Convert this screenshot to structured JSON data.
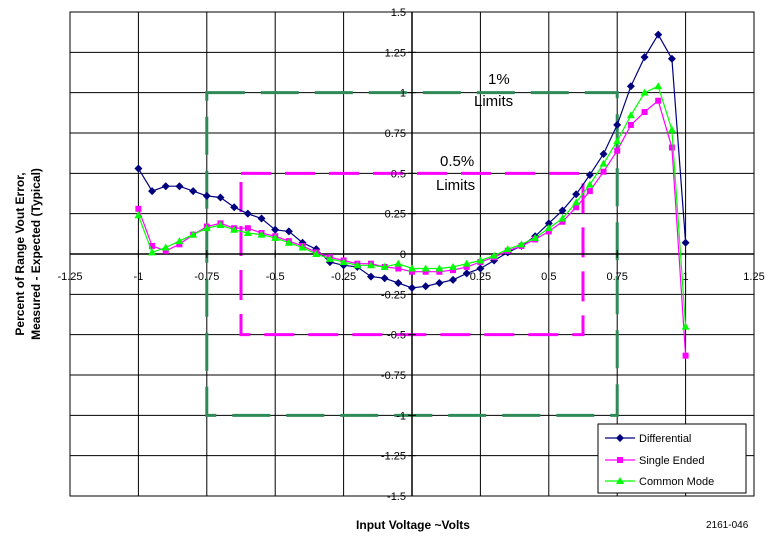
{
  "chart_data": {
    "type": "line",
    "xlabel": "Input Voltage ~Volts",
    "ylabel": [
      "Percent of Range Vout Error,",
      "Measured - Expected (Typical)"
    ],
    "xlim": [
      -1.25,
      1.25
    ],
    "ylim": [
      -1.5,
      1.5
    ],
    "xticks": [
      -1.25,
      -1,
      -0.75,
      -0.5,
      -0.25,
      0,
      0.25,
      0.5,
      0.75,
      1,
      1.25
    ],
    "xtick_labels": [
      "-1.25",
      "-1",
      "-0.75",
      "-0.5",
      "-0.25",
      "0",
      "0.25",
      "0.5",
      "0.75",
      "1",
      "1.25"
    ],
    "yticks": [
      -1.5,
      -1.25,
      -1,
      -0.75,
      -0.5,
      -0.25,
      0,
      0.25,
      0.5,
      0.75,
      1,
      1.25,
      1.5
    ],
    "ytick_labels": [
      "-1.5",
      "-1.25",
      "-1",
      "-0.75",
      "-0.5",
      "-0.25",
      "0",
      "0.25",
      "0.5",
      "0.75",
      "1",
      "1.25",
      "1.5"
    ],
    "grid": true,
    "legend_position": "bottom-right",
    "figure_number": "2161-046",
    "limit_boxes": [
      {
        "label_line1": "1%",
        "label_line2": "Limits",
        "color": "#2e8b57",
        "x": [
          -0.75,
          0.75
        ],
        "y": [
          -1,
          1
        ]
      },
      {
        "label_line1": "0.5%",
        "label_line2": "Limits",
        "color": "#ff00ff",
        "x": [
          -0.625,
          0.625
        ],
        "y": [
          -0.5,
          0.5
        ]
      }
    ],
    "series": [
      {
        "name": "Differential",
        "color": "#00007f",
        "marker": "diamond",
        "x": [
          -1,
          -0.95,
          -0.9,
          -0.85,
          -0.8,
          -0.75,
          -0.7,
          -0.65,
          -0.6,
          -0.55,
          -0.5,
          -0.45,
          -0.4,
          -0.35,
          -0.3,
          -0.25,
          -0.2,
          -0.15,
          -0.1,
          -0.05,
          0,
          0.05,
          0.1,
          0.15,
          0.2,
          0.25,
          0.3,
          0.35,
          0.4,
          0.45,
          0.5,
          0.55,
          0.6,
          0.65,
          0.7,
          0.75,
          0.8,
          0.85,
          0.9,
          0.95,
          1
        ],
        "y": [
          0.53,
          0.39,
          0.42,
          0.42,
          0.39,
          0.36,
          0.35,
          0.29,
          0.25,
          0.22,
          0.15,
          0.14,
          0.07,
          0.03,
          -0.05,
          -0.07,
          -0.08,
          -0.14,
          -0.15,
          -0.18,
          -0.21,
          -0.2,
          -0.18,
          -0.16,
          -0.12,
          -0.09,
          -0.04,
          0.01,
          0.05,
          0.11,
          0.19,
          0.27,
          0.37,
          0.49,
          0.62,
          0.8,
          1.04,
          1.22,
          1.36,
          1.21,
          0.07
        ]
      },
      {
        "name": "Single Ended",
        "color": "#ff00ff",
        "marker": "square",
        "x": [
          -1,
          -0.95,
          -0.9,
          -0.85,
          -0.8,
          -0.75,
          -0.7,
          -0.65,
          -0.6,
          -0.55,
          -0.5,
          -0.45,
          -0.4,
          -0.35,
          -0.3,
          -0.25,
          -0.2,
          -0.15,
          -0.1,
          -0.05,
          0,
          0.05,
          0.1,
          0.15,
          0.2,
          0.25,
          0.3,
          0.35,
          0.4,
          0.45,
          0.5,
          0.55,
          0.6,
          0.65,
          0.7,
          0.75,
          0.8,
          0.85,
          0.9,
          0.95,
          1
        ],
        "y": [
          0.28,
          0.05,
          0.02,
          0.06,
          0.12,
          0.17,
          0.19,
          0.16,
          0.16,
          0.13,
          0.11,
          0.08,
          0.05,
          0.01,
          -0.02,
          -0.04,
          -0.06,
          -0.06,
          -0.08,
          -0.09,
          -0.11,
          -0.11,
          -0.11,
          -0.1,
          -0.08,
          -0.05,
          -0.02,
          0.02,
          0.05,
          0.09,
          0.14,
          0.2,
          0.29,
          0.39,
          0.51,
          0.64,
          0.8,
          0.88,
          0.95,
          0.66,
          -0.63
        ]
      },
      {
        "name": "Common Mode",
        "color": "#00ff00",
        "marker": "triangle",
        "x": [
          -1,
          -0.95,
          -0.9,
          -0.85,
          -0.8,
          -0.75,
          -0.7,
          -0.65,
          -0.6,
          -0.55,
          -0.5,
          -0.45,
          -0.4,
          -0.35,
          -0.3,
          -0.25,
          -0.2,
          -0.15,
          -0.1,
          -0.05,
          0,
          0.05,
          0.1,
          0.15,
          0.2,
          0.25,
          0.3,
          0.35,
          0.4,
          0.45,
          0.5,
          0.55,
          0.6,
          0.65,
          0.7,
          0.75,
          0.8,
          0.85,
          0.9,
          0.95,
          1
        ],
        "y": [
          0.24,
          0.01,
          0.04,
          0.08,
          0.12,
          0.16,
          0.18,
          0.15,
          0.13,
          0.12,
          0.1,
          0.07,
          0.04,
          0.0,
          -0.03,
          -0.05,
          -0.07,
          -0.07,
          -0.08,
          -0.06,
          -0.09,
          -0.09,
          -0.09,
          -0.08,
          -0.06,
          -0.04,
          -0.01,
          0.03,
          0.06,
          0.1,
          0.16,
          0.22,
          0.32,
          0.43,
          0.56,
          0.7,
          0.86,
          1.0,
          1.04,
          0.77,
          -0.45
        ]
      }
    ]
  }
}
